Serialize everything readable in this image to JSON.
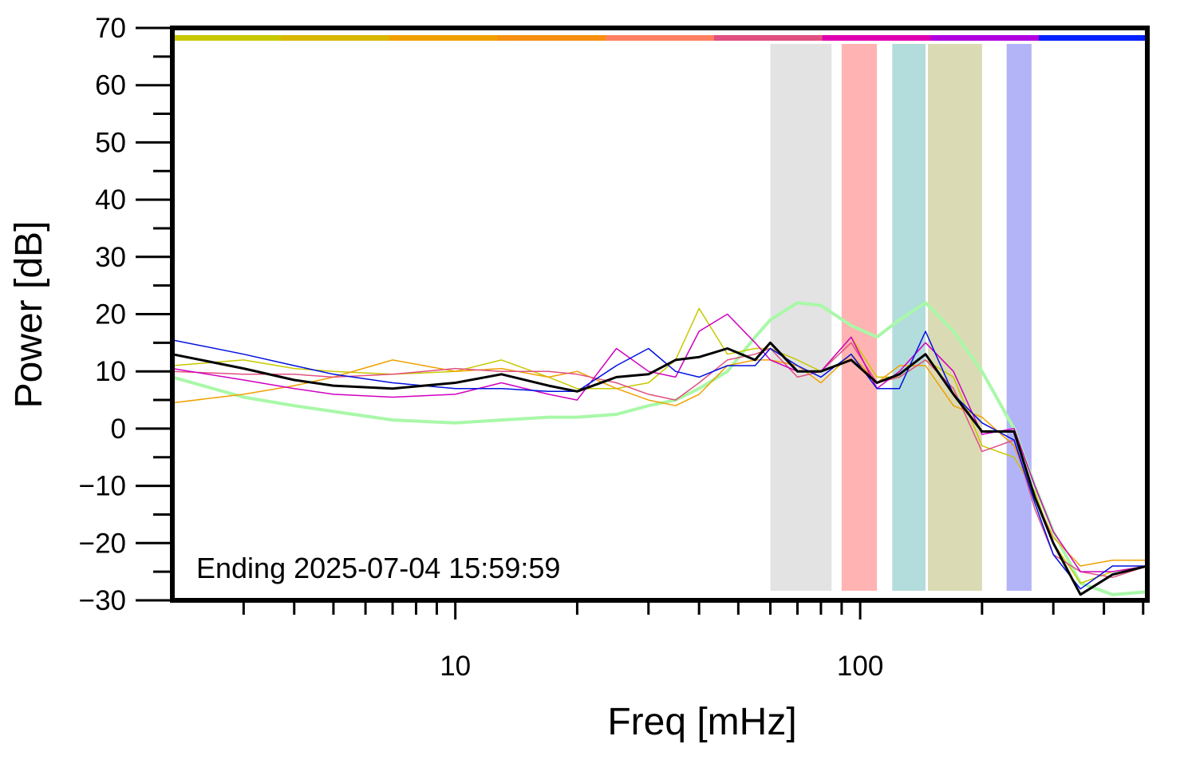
{
  "chart_data": {
    "type": "line",
    "xlabel": "Freq [mHz]",
    "ylabel": "Power [dB]",
    "annotation": "Ending 2025-07-04 15:59:59",
    "xscale": "log",
    "xlim": [
      2,
      512
    ],
    "ylim": [
      -30,
      70
    ],
    "xticks": [
      10,
      100
    ],
    "xminorticks": [
      3,
      4,
      5,
      6,
      7,
      8,
      9,
      20,
      30,
      40,
      50,
      60,
      70,
      80,
      90,
      200,
      300,
      400,
      500
    ],
    "yticks": [
      {
        "value": -30,
        "label": "−30"
      },
      {
        "value": -20,
        "label": "−20"
      },
      {
        "value": -10,
        "label": "−10"
      },
      0,
      10,
      20,
      30,
      40,
      50,
      60,
      70
    ],
    "yminorticks": [
      -25,
      -15,
      -5,
      5,
      15,
      25,
      35,
      45,
      55,
      65
    ],
    "top_bar_colors": [
      "#c8c800",
      "#d8b800",
      "#f0a000",
      "#f59010",
      "#ff8060",
      "#e05080",
      "#e000b0",
      "#b000e0",
      "#0020ff"
    ],
    "bands": [
      {
        "x": [
          60,
          85
        ],
        "color": "#e3e3e3"
      },
      {
        "x": [
          90,
          110
        ],
        "color": "#ffb3b3"
      },
      {
        "x": [
          120,
          145
        ],
        "color": "#b3dcdc"
      },
      {
        "x": [
          147,
          200
        ],
        "color": "#dadab4"
      },
      {
        "x": [
          230,
          265
        ],
        "color": "#b3b3f8"
      }
    ],
    "x": [
      2,
      3,
      4,
      5,
      7,
      10,
      13,
      17,
      20,
      25,
      30,
      35,
      40,
      47,
      55,
      60,
      70,
      80,
      95,
      110,
      125,
      145,
      170,
      200,
      240,
      270,
      300,
      350,
      420,
      512
    ],
    "series": [
      {
        "color": "#a8f8a8",
        "width": 4,
        "values": [
          9,
          5.5,
          4,
          3,
          1.5,
          1,
          1.5,
          2,
          2,
          2.5,
          4,
          5,
          7,
          10,
          16,
          19,
          22,
          21.5,
          18,
          16,
          19,
          22,
          17,
          10,
          0,
          -10,
          -18,
          -27,
          -29,
          -28.5
        ]
      },
      {
        "color": "#c8c800",
        "width": 1.5,
        "values": [
          11,
          12,
          10.5,
          10,
          9.5,
          10,
          12,
          9,
          7,
          7,
          8,
          12,
          21,
          13,
          14,
          14,
          12,
          10,
          16,
          9,
          9,
          12,
          9,
          -3,
          -5,
          -11,
          -20,
          -27,
          -25,
          -24
        ]
      },
      {
        "color": "#f0a000",
        "width": 1.5,
        "values": [
          4.5,
          6,
          7.5,
          9,
          12,
          10,
          10.5,
          9,
          10,
          7,
          5,
          4,
          6,
          11,
          12,
          12,
          11,
          8,
          13,
          8,
          11,
          11,
          4,
          2,
          -3,
          -12,
          -19,
          -24,
          -23,
          -23
        ]
      },
      {
        "color": "#e05080",
        "width": 1.5,
        "values": [
          10,
          9.5,
          9.5,
          9,
          9.5,
          10.5,
          10,
          10,
          9.5,
          8,
          6,
          5,
          8,
          12,
          13,
          14,
          9,
          10,
          15,
          8,
          9,
          12,
          7,
          -4,
          -2,
          -14,
          -22,
          -25,
          -26,
          -24
        ]
      },
      {
        "color": "#d000c0",
        "width": 1.5,
        "values": [
          10.5,
          8.5,
          7,
          6,
          5.5,
          6,
          8,
          6,
          5,
          14,
          10,
          9,
          17,
          20,
          15,
          12,
          10,
          10,
          16,
          7,
          10,
          15,
          10,
          -1,
          0,
          -10,
          -18,
          -25,
          -25,
          -24
        ]
      },
      {
        "color": "#0010e0",
        "width": 1.5,
        "values": [
          15.5,
          13,
          11,
          9.5,
          8,
          7,
          7,
          6.5,
          6.5,
          11,
          14,
          10,
          9,
          11,
          11,
          14,
          11,
          9,
          13,
          7,
          7,
          17,
          6,
          1,
          -2,
          -13,
          -22,
          -28,
          -24,
          -24
        ]
      },
      {
        "color": "#000000",
        "width": 3,
        "values": [
          13,
          10.5,
          8.5,
          7.5,
          7,
          8,
          9.5,
          7.5,
          6.5,
          9,
          9.5,
          12,
          12.5,
          14,
          12,
          15,
          10,
          10,
          12,
          8,
          9.5,
          13,
          6,
          -0.5,
          -0.5,
          -12,
          -20,
          -29,
          -25.5,
          -24
        ]
      }
    ]
  }
}
